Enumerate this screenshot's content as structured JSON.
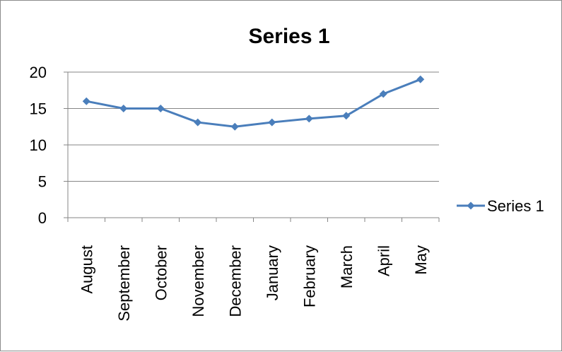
{
  "chart_data": {
    "type": "line",
    "title": "Series 1",
    "xlabel": "",
    "ylabel": "",
    "categories": [
      "August",
      "September",
      "October",
      "November",
      "December",
      "January",
      "February",
      "March",
      "April",
      "May"
    ],
    "series": [
      {
        "name": "Series 1",
        "values": [
          16,
          15,
          15,
          13.1,
          12.5,
          13.1,
          13.6,
          14,
          17,
          19
        ],
        "color": "#4a7ebb",
        "marker": "diamond"
      }
    ],
    "ylim": [
      0,
      20
    ],
    "yticks": [
      "0",
      "5",
      "10",
      "15",
      "20"
    ],
    "grid": true,
    "legend": "right"
  }
}
